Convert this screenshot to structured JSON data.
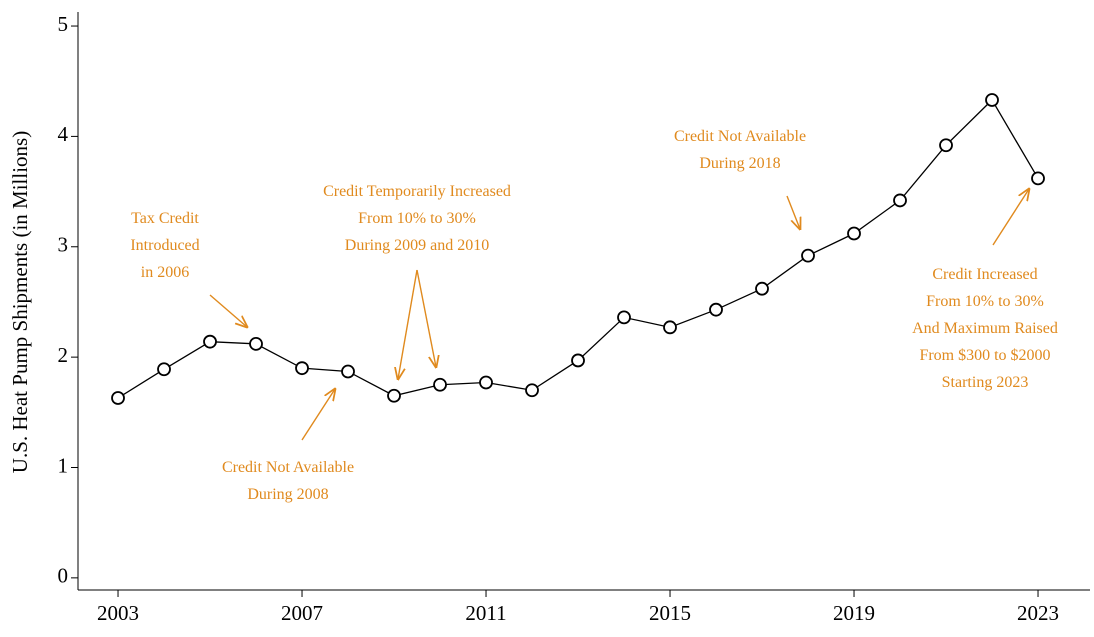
{
  "chart_data": {
    "type": "line",
    "y_label": "U.S. Heat Pump Shipments (in Millions)",
    "x": [
      2003,
      2004,
      2005,
      2006,
      2007,
      2008,
      2009,
      2010,
      2011,
      2012,
      2013,
      2014,
      2015,
      2016,
      2017,
      2018,
      2019,
      2020,
      2021,
      2022,
      2023
    ],
    "series": [
      {
        "color": "#000000",
        "values": [
          1.63,
          1.89,
          2.14,
          2.12,
          1.9,
          1.87,
          1.65,
          1.75,
          1.77,
          1.7,
          1.97,
          2.36,
          2.27,
          2.43,
          2.62,
          2.92,
          3.12,
          3.42,
          3.92,
          4.33,
          3.62
        ]
      }
    ],
    "xlim": [
      2002.13,
      2024.13
    ],
    "ylim": [
      -0.11,
      5.1
    ],
    "xticks": [
      2003,
      2007,
      2011,
      2015,
      2019,
      2023
    ],
    "yticks": [
      0,
      1,
      2,
      3,
      4,
      5
    ],
    "annotation_color": "#e08a1e",
    "annotations": [
      [
        "Tax Credit",
        "Introduced",
        "in 2006"
      ],
      [
        "Credit Not Available",
        "During 2008"
      ],
      [
        "Credit Temporarily Increased",
        "From 10% to 30%",
        "During 2009 and 2010"
      ],
      [
        "Credit Not Available",
        "During 2018"
      ],
      [
        "Credit Increased",
        "From 10% to 30%",
        "And Maximum Raised",
        "From $300 to $2000",
        "Starting 2023"
      ]
    ]
  }
}
